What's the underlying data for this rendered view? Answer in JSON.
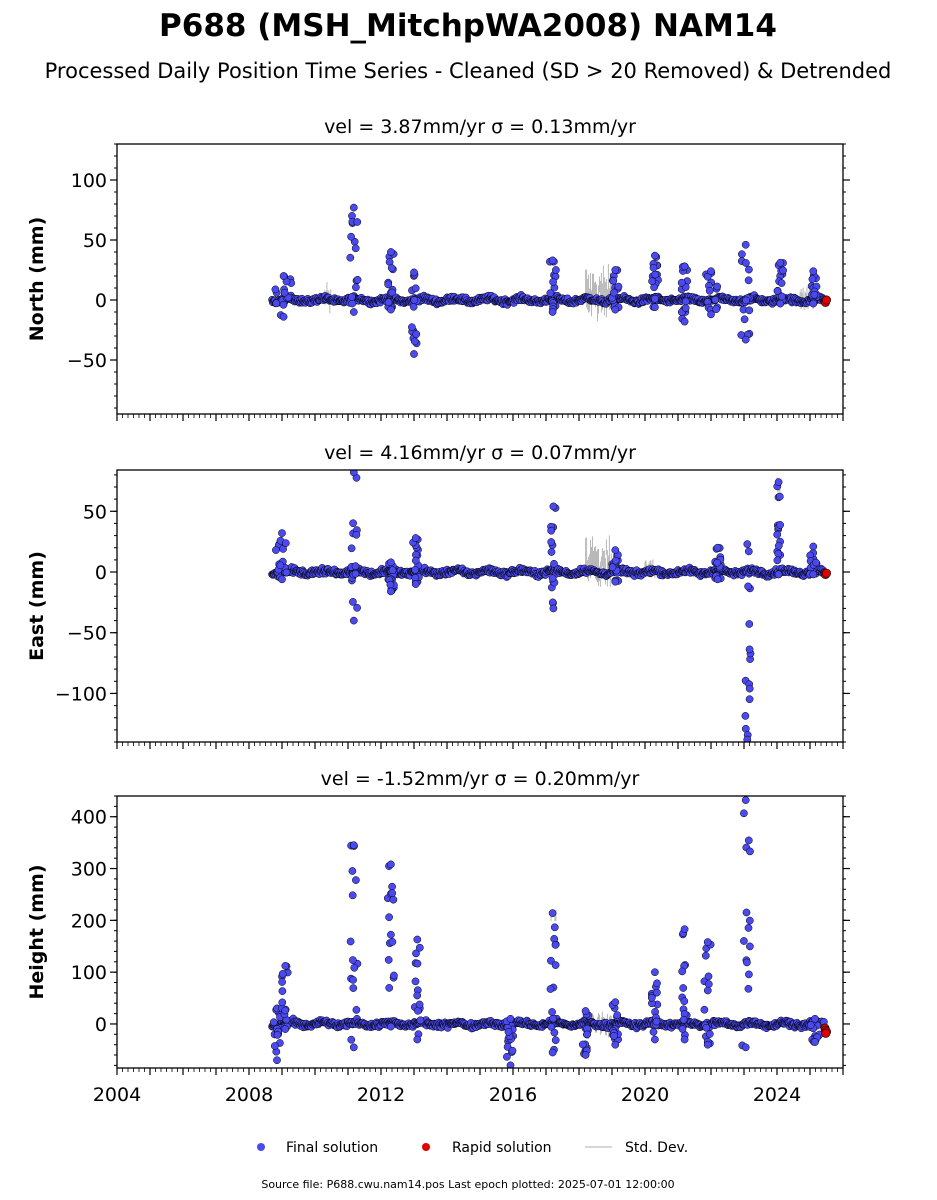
{
  "title": "P688 (MSH_MitchpWA2008) NAM14",
  "subtitle": "Processed Daily Position Time Series - Cleaned (SD > 20 Removed) & Detrended",
  "source_note": "Source file: P688.cwu.nam14.pos  Last epoch plotted: 2025-07-01 12:00:00",
  "legend": {
    "final": "Final solution",
    "rapid": "Rapid solution",
    "std": "Std. Dev."
  },
  "colors": {
    "final": "#4a4af0",
    "rapid": "#e00000",
    "std": "#b8b8b8",
    "marker_edge": "#000000"
  },
  "chart_data": [
    {
      "type": "scatter",
      "panel": "north",
      "title": "vel = 3.87mm/yr   σ = 0.13mm/yr",
      "ylabel": "North (mm)",
      "xlim": [
        2004.0,
        2026.0
      ],
      "ylim": [
        -95,
        130
      ],
      "yticks": [
        -50,
        0,
        50,
        100
      ],
      "x_ticks": [
        2004,
        2008,
        2012,
        2016,
        2020,
        2024
      ],
      "data_start": 2008.7,
      "data_end": 2025.5,
      "spikes": [
        {
          "x": [
            2008.8,
            2009.3
          ],
          "min": -14,
          "max": 20
        },
        {
          "x": [
            2011.05,
            2011.3
          ],
          "min": -10,
          "max": 77
        },
        {
          "x": [
            2012.2,
            2012.4
          ],
          "min": -8,
          "max": 40
        },
        {
          "x": [
            2012.9,
            2013.1
          ],
          "min": -45,
          "max": 23
        },
        {
          "x": [
            2017.1,
            2017.3
          ],
          "min": -10,
          "max": 33
        },
        {
          "x": [
            2019.0,
            2019.2
          ],
          "min": -8,
          "max": 25
        },
        {
          "x": [
            2020.2,
            2020.4
          ],
          "min": -6,
          "max": 37
        },
        {
          "x": [
            2021.1,
            2021.3
          ],
          "min": -18,
          "max": 28
        },
        {
          "x": [
            2021.8,
            2022.2
          ],
          "min": -12,
          "max": 24
        },
        {
          "x": [
            2022.9,
            2023.2
          ],
          "min": -33,
          "max": 46
        },
        {
          "x": [
            2024.0,
            2024.2
          ],
          "min": -3,
          "max": 31
        },
        {
          "x": [
            2025.0,
            2025.2
          ],
          "min": -3,
          "max": 24
        }
      ],
      "std_bursts": [
        {
          "x": [
            2018.2,
            2019.0
          ],
          "min": -28,
          "max": 36
        },
        {
          "x": [
            2010.3,
            2010.5
          ],
          "min": -10,
          "max": 18
        },
        {
          "x": [
            2024.7,
            2025.1
          ],
          "min": -15,
          "max": 16
        }
      ],
      "rapid_points": [
        {
          "x": 2025.45,
          "y": -1
        },
        {
          "x": 2025.47,
          "y": -2
        },
        {
          "x": 2025.5,
          "y": 0
        }
      ]
    },
    {
      "type": "scatter",
      "panel": "east",
      "title": "vel = 4.16mm/yr   σ = 0.07mm/yr",
      "ylabel": "East (mm)",
      "xlim": [
        2004.0,
        2026.0
      ],
      "ylim": [
        -140,
        84
      ],
      "yticks": [
        -100,
        -50,
        0,
        50
      ],
      "x_ticks": [
        2004,
        2008,
        2012,
        2016,
        2020,
        2024
      ],
      "data_start": 2008.7,
      "data_end": 2025.5,
      "spikes": [
        {
          "x": [
            2008.8,
            2009.2
          ],
          "min": -6,
          "max": 32
        },
        {
          "x": [
            2011.05,
            2011.3
          ],
          "min": -40,
          "max": 82
        },
        {
          "x": [
            2012.95,
            2013.15
          ],
          "min": -10,
          "max": 28
        },
        {
          "x": [
            2012.2,
            2012.4
          ],
          "min": -16,
          "max": 8
        },
        {
          "x": [
            2017.15,
            2017.3
          ],
          "min": -30,
          "max": 54
        },
        {
          "x": [
            2019.0,
            2019.2
          ],
          "min": -8,
          "max": 18
        },
        {
          "x": [
            2022.1,
            2022.3
          ],
          "min": -6,
          "max": 20
        },
        {
          "x": [
            2023.0,
            2023.2
          ],
          "min": -138,
          "max": 23
        },
        {
          "x": [
            2024.0,
            2024.1
          ],
          "min": -2,
          "max": 74
        },
        {
          "x": [
            2025.0,
            2025.2
          ],
          "min": -2,
          "max": 21
        }
      ],
      "std_bursts": [
        {
          "x": [
            2018.2,
            2019.0
          ],
          "min": -22,
          "max": 36
        },
        {
          "x": [
            2020.0,
            2020.3
          ],
          "min": -6,
          "max": 14
        },
        {
          "x": [
            2024.0,
            2024.1
          ],
          "min": 60,
          "max": 84
        }
      ],
      "rapid_points": [
        {
          "x": 2025.45,
          "y": -1
        },
        {
          "x": 2025.47,
          "y": -2
        },
        {
          "x": 2025.5,
          "y": -1
        }
      ]
    },
    {
      "type": "scatter",
      "panel": "height",
      "title": "vel = -1.52mm/yr   σ = 0.20mm/yr",
      "ylabel": "Height (mm)",
      "xlim": [
        2004.0,
        2026.0
      ],
      "ylim": [
        -85,
        440
      ],
      "yticks": [
        0,
        100,
        200,
        300,
        400
      ],
      "x_ticks": [
        2004,
        2008,
        2012,
        2016,
        2020,
        2024
      ],
      "data_start": 2008.7,
      "data_end": 2025.5,
      "spikes": [
        {
          "x": [
            2008.75,
            2008.95
          ],
          "min": -70,
          "max": 30
        },
        {
          "x": [
            2009.0,
            2009.2
          ],
          "min": -10,
          "max": 112
        },
        {
          "x": [
            2011.05,
            2011.3
          ],
          "min": -45,
          "max": 345
        },
        {
          "x": [
            2012.2,
            2012.4
          ],
          "min": -5,
          "max": 308
        },
        {
          "x": [
            2013.0,
            2013.2
          ],
          "min": -30,
          "max": 163
        },
        {
          "x": [
            2015.8,
            2016.05
          ],
          "min": -80,
          "max": 10
        },
        {
          "x": [
            2017.1,
            2017.3
          ],
          "min": -55,
          "max": 214
        },
        {
          "x": [
            2018.1,
            2018.3
          ],
          "min": -60,
          "max": 25
        },
        {
          "x": [
            2019.0,
            2019.2
          ],
          "min": -40,
          "max": 42
        },
        {
          "x": [
            2020.2,
            2020.4
          ],
          "min": -30,
          "max": 100
        },
        {
          "x": [
            2021.1,
            2021.3
          ],
          "min": -30,
          "max": 183
        },
        {
          "x": [
            2021.8,
            2022.0
          ],
          "min": -40,
          "max": 158
        },
        {
          "x": [
            2022.9,
            2023.2
          ],
          "min": -45,
          "max": 432
        },
        {
          "x": [
            2025.0,
            2025.3
          ],
          "min": -35,
          "max": 10
        }
      ],
      "std_bursts": [
        {
          "x": [
            2017.15,
            2017.3
          ],
          "min": 190,
          "max": 230
        },
        {
          "x": [
            2018.2,
            2019.0
          ],
          "min": -30,
          "max": 30
        }
      ],
      "rapid_points": [
        {
          "x": 2025.45,
          "y": -8
        },
        {
          "x": 2025.47,
          "y": -12
        },
        {
          "x": 2025.5,
          "y": -15
        },
        {
          "x": 2025.48,
          "y": -18
        }
      ]
    }
  ]
}
